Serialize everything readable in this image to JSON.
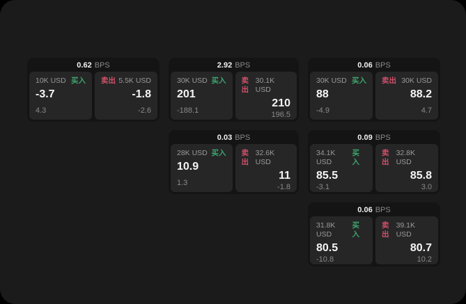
{
  "colors": {
    "page_background": "#000000",
    "app_surface": "#1b1b1c",
    "card_surface": "#141414",
    "panel_surface": "#262627",
    "buy_green": "#3ca56b",
    "sell_red": "#cf5068",
    "label_gray": "#9a9a9a",
    "value_white": "#f5f5f5"
  },
  "cards": [
    {
      "bps": "0.62",
      "unit": "BPS",
      "buy": {
        "amount": "10K USD",
        "side": "买入",
        "value": "-3.7",
        "sub": "4.3"
      },
      "sell": {
        "amount": "5.5K USD",
        "side": "卖出",
        "value": "-1.8",
        "sub": "-2.6"
      }
    },
    {
      "bps": "2.92",
      "unit": "BPS",
      "buy": {
        "amount": "30K USD",
        "side": "买入",
        "value": "201",
        "sub": "-188.1"
      },
      "sell": {
        "amount": "30.1K USD",
        "side": "卖出",
        "value": "210",
        "sub": "196.5"
      }
    },
    {
      "bps": "0.06",
      "unit": "BPS",
      "buy": {
        "amount": "30K USD",
        "side": "买入",
        "value": "88",
        "sub": "-4.9"
      },
      "sell": {
        "amount": "30K USD",
        "side": "卖出",
        "value": "88.2",
        "sub": "4.7"
      }
    },
    {
      "bps": "0.03",
      "unit": "BPS",
      "buy": {
        "amount": "28K USD",
        "side": "买入",
        "value": "10.9",
        "sub": "1.3"
      },
      "sell": {
        "amount": "32.6K USD",
        "side": "卖出",
        "value": "11",
        "sub": "-1.8"
      }
    },
    {
      "bps": "0.09",
      "unit": "BPS",
      "buy": {
        "amount": "34.1K USD",
        "side": "买入",
        "value": "85.5",
        "sub": "-3.1"
      },
      "sell": {
        "amount": "32.8K USD",
        "side": "卖出",
        "value": "85.8",
        "sub": "3.0"
      }
    },
    {
      "bps": "0.06",
      "unit": "BPS",
      "buy": {
        "amount": "31.8K USD",
        "side": "买入",
        "value": "80.5",
        "sub": "-10.8"
      },
      "sell": {
        "amount": "39.1K USD",
        "side": "卖出",
        "value": "80.7",
        "sub": "10.2"
      }
    }
  ]
}
